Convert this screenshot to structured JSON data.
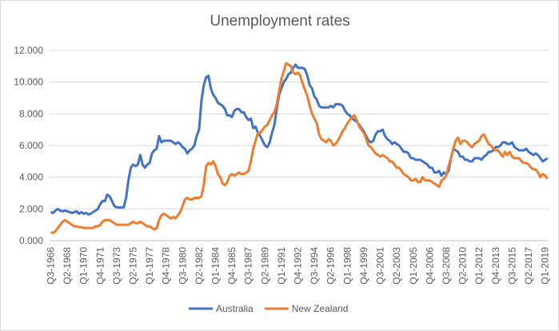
{
  "chart_data": {
    "type": "line",
    "title": "Unemployment rates",
    "categories": [
      "Q3-1966",
      null,
      null,
      null,
      null,
      null,
      null,
      "Q2-1968",
      null,
      null,
      null,
      null,
      null,
      null,
      "Q1-1970",
      null,
      null,
      null,
      null,
      null,
      null,
      "Q4-1971",
      null,
      null,
      null,
      null,
      null,
      null,
      "Q3-1973",
      null,
      null,
      null,
      null,
      null,
      null,
      "Q2-1975",
      null,
      null,
      null,
      null,
      null,
      null,
      "Q1-1977",
      null,
      null,
      null,
      null,
      null,
      null,
      "Q4-1978",
      null,
      null,
      null,
      null,
      null,
      null,
      "Q3-1980",
      null,
      null,
      null,
      null,
      null,
      null,
      "Q2-1982",
      null,
      null,
      null,
      null,
      null,
      null,
      "Q1-1984",
      null,
      null,
      null,
      null,
      null,
      null,
      "Q4-1985",
      null,
      null,
      null,
      null,
      null,
      null,
      "Q3-1987",
      null,
      null,
      null,
      null,
      null,
      null,
      "Q2-1989",
      null,
      null,
      null,
      null,
      null,
      null,
      "Q1-1991",
      null,
      null,
      null,
      null,
      null,
      null,
      "Q4-1992",
      null,
      null,
      null,
      null,
      null,
      null,
      "Q3-1994",
      null,
      null,
      null,
      null,
      null,
      null,
      "Q2-1996",
      null,
      null,
      null,
      null,
      null,
      null,
      "Q1-1998",
      null,
      null,
      null,
      null,
      null,
      null,
      "Q4-1999",
      null,
      null,
      null,
      null,
      null,
      null,
      "Q3-2001",
      null,
      null,
      null,
      null,
      null,
      null,
      "Q2-2003",
      null,
      null,
      null,
      null,
      null,
      null,
      "Q1-2005",
      null,
      null,
      null,
      null,
      null,
      null,
      "Q4-2006",
      null,
      null,
      null,
      null,
      null,
      null,
      "Q3-2008",
      null,
      null,
      null,
      null,
      null,
      null,
      "Q2-2010",
      null,
      null,
      null,
      null,
      null,
      null,
      "Q1-2012",
      null,
      null,
      null,
      null,
      null,
      null,
      "Q4-2013",
      null,
      null,
      null,
      null,
      null,
      null,
      "Q3-2015",
      null,
      null,
      null,
      null,
      null,
      null,
      "Q2-2017",
      null,
      null,
      null,
      null,
      null,
      null,
      "Q1-2019",
      null
    ],
    "series": [
      {
        "name": "Australia",
        "color": "#4472c4",
        "values": [
          1.8,
          1.75,
          1.9,
          2.0,
          1.9,
          1.85,
          1.9,
          1.85,
          1.8,
          1.75,
          1.8,
          1.85,
          1.7,
          1.8,
          1.7,
          1.75,
          1.65,
          1.7,
          1.8,
          1.9,
          2.0,
          2.3,
          2.5,
          2.5,
          2.9,
          2.8,
          2.5,
          2.2,
          2.1,
          2.1,
          2.1,
          2.1,
          2.7,
          3.8,
          4.6,
          4.8,
          4.7,
          4.8,
          5.4,
          4.8,
          4.6,
          4.8,
          4.9,
          5.5,
          5.7,
          5.8,
          6.6,
          6.2,
          6.3,
          6.3,
          6.3,
          6.3,
          6.2,
          6.1,
          6.2,
          6.1,
          5.9,
          5.8,
          5.5,
          5.7,
          5.8,
          6.0,
          6.6,
          7.0,
          8.8,
          9.8,
          10.3,
          10.4,
          9.6,
          9.2,
          9.0,
          8.7,
          8.6,
          8.5,
          8.3,
          7.9,
          7.9,
          7.8,
          8.2,
          8.3,
          8.3,
          8.1,
          8.1,
          7.8,
          7.6,
          7.7,
          7.1,
          7.2,
          6.8,
          6.6,
          6.3,
          6.0,
          5.9,
          6.2,
          6.8,
          7.3,
          8.3,
          9.2,
          9.6,
          10.0,
          10.2,
          10.5,
          10.6,
          10.9,
          11.1,
          10.9,
          10.9,
          10.9,
          10.8,
          10.4,
          9.8,
          9.6,
          9.1,
          8.9,
          8.5,
          8.4,
          8.4,
          8.4,
          8.4,
          8.5,
          8.4,
          8.6,
          8.6,
          8.6,
          8.5,
          8.2,
          8.0,
          7.9,
          7.7,
          7.6,
          7.5,
          7.3,
          7.1,
          6.9,
          6.6,
          6.3,
          6.2,
          6.3,
          6.7,
          6.9,
          6.9,
          7.0,
          6.6,
          6.4,
          6.3,
          6.1,
          6.2,
          6.1,
          6.0,
          5.8,
          5.6,
          5.6,
          5.5,
          5.2,
          5.2,
          5.1,
          5.1,
          5.1,
          5.0,
          4.9,
          4.8,
          4.6,
          4.6,
          4.3,
          4.3,
          4.4,
          4.1,
          4.3,
          4.2,
          4.4,
          5.2,
          5.8,
          5.7,
          5.6,
          5.3,
          5.3,
          5.1,
          5.1,
          5.0,
          5.0,
          5.2,
          5.2,
          5.2,
          5.1,
          5.3,
          5.4,
          5.6,
          5.6,
          5.7,
          5.9,
          5.9,
          6.0,
          6.2,
          6.2,
          6.1,
          6.1,
          6.2,
          5.9,
          5.8,
          5.7,
          5.7,
          5.7,
          5.8,
          5.6,
          5.5,
          5.4,
          5.5,
          5.4,
          5.2,
          5.0,
          5.1,
          5.2
        ]
      },
      {
        "name": "New Zealand",
        "color": "#ed7d31",
        "values": [
          0.5,
          0.5,
          0.6,
          0.8,
          1.0,
          1.2,
          1.3,
          1.2,
          1.1,
          1.0,
          0.9,
          0.9,
          0.85,
          0.85,
          0.8,
          0.8,
          0.8,
          0.8,
          0.8,
          0.9,
          0.9,
          1.0,
          1.2,
          1.3,
          1.3,
          1.3,
          1.2,
          1.1,
          1.0,
          1.0,
          1.0,
          1.0,
          1.0,
          1.0,
          1.1,
          1.2,
          1.1,
          1.1,
          1.2,
          1.1,
          1.0,
          0.9,
          0.9,
          0.8,
          0.7,
          0.8,
          1.3,
          1.6,
          1.7,
          1.6,
          1.5,
          1.4,
          1.5,
          1.4,
          1.6,
          1.8,
          2.2,
          2.6,
          2.7,
          2.6,
          2.6,
          2.7,
          2.7,
          2.7,
          2.8,
          3.5,
          4.7,
          4.9,
          4.8,
          5.0,
          4.7,
          4.2,
          4.0,
          3.6,
          3.5,
          3.7,
          4.1,
          4.2,
          4.1,
          4.2,
          4.3,
          4.2,
          4.2,
          4.3,
          4.4,
          5.0,
          5.8,
          6.3,
          6.8,
          6.8,
          7.0,
          7.2,
          7.3,
          7.6,
          7.9,
          8.1,
          8.6,
          9.4,
          10.2,
          10.7,
          11.2,
          11.1,
          11.0,
          10.6,
          10.5,
          10.6,
          10.4,
          9.9,
          9.5,
          9.1,
          8.5,
          8.0,
          7.7,
          7.4,
          6.7,
          6.4,
          6.3,
          6.2,
          6.4,
          6.3,
          6.0,
          6.1,
          6.3,
          6.6,
          6.9,
          7.1,
          7.4,
          7.6,
          7.8,
          7.9,
          7.6,
          7.2,
          7.0,
          6.8,
          6.4,
          6.0,
          5.9,
          5.7,
          5.5,
          5.4,
          5.3,
          5.4,
          5.3,
          5.2,
          5.0,
          5.0,
          4.8,
          4.6,
          4.6,
          4.4,
          4.2,
          4.1,
          4.0,
          3.8,
          3.8,
          3.9,
          3.7,
          3.7,
          4.0,
          3.8,
          3.8,
          3.8,
          3.7,
          3.6,
          3.5,
          3.4,
          3.8,
          3.9,
          4.1,
          4.7,
          5.2,
          5.8,
          6.3,
          6.5,
          6.1,
          6.3,
          6.3,
          6.2,
          6.0,
          5.9,
          6.1,
          6.2,
          6.3,
          6.6,
          6.7,
          6.4,
          6.1,
          6.0,
          5.8,
          5.7,
          5.7,
          5.5,
          5.3,
          5.6,
          5.4,
          5.6,
          5.3,
          5.2,
          5.2,
          5.2,
          5.0,
          4.9,
          4.9,
          4.8,
          4.6,
          4.5,
          4.5,
          4.3,
          4.0,
          4.2,
          4.1,
          3.9
        ]
      }
    ],
    "ylim": [
      0,
      12
    ],
    "yticks": [
      {
        "value": 0,
        "label": "0.000"
      },
      {
        "value": 2,
        "label": "2.000"
      },
      {
        "value": 4,
        "label": "4.000"
      },
      {
        "value": 6,
        "label": "6.000"
      },
      {
        "value": 8,
        "label": "8.000"
      },
      {
        "value": 10,
        "label": "10.000"
      },
      {
        "value": 12,
        "label": "12.000"
      }
    ],
    "grid": true,
    "legend": "bottom"
  }
}
